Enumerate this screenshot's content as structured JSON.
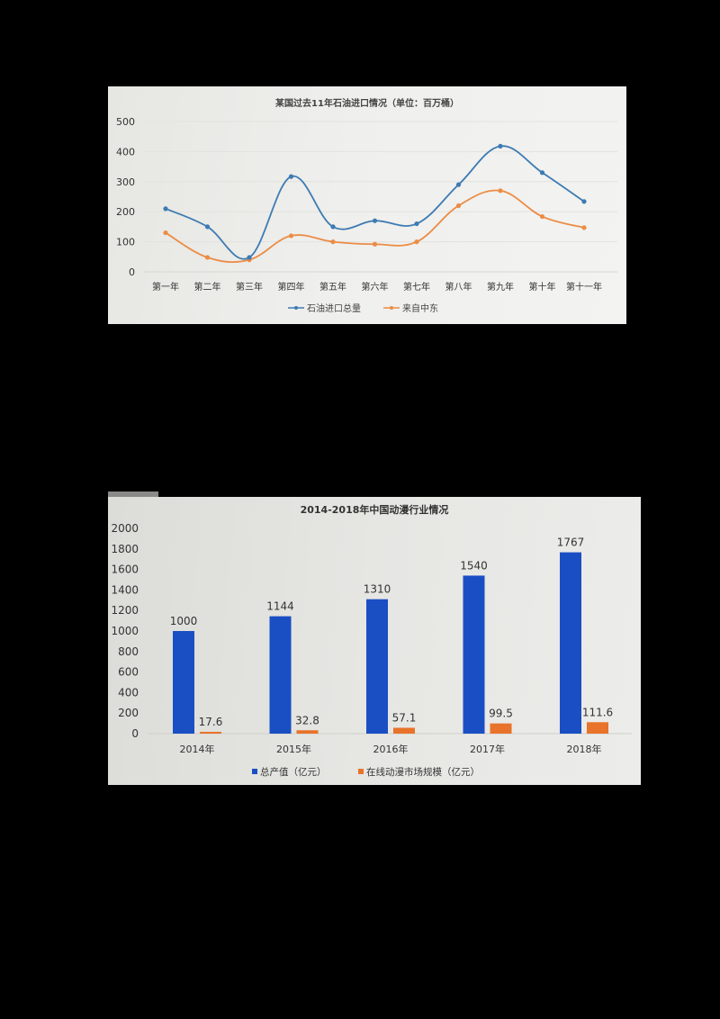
{
  "chart_data": [
    {
      "type": "line",
      "title": "某国过去11年石油进口情况（单位：百万桶）",
      "xlabel": "",
      "ylabel": "",
      "categories": [
        "第一年",
        "第二年",
        "第三年",
        "第四年",
        "第五年",
        "第六年",
        "第七年",
        "第八年",
        "第九年",
        "第十年",
        "第十一年"
      ],
      "series": [
        {
          "name": "石油进口总量",
          "color": "#3d7bb3",
          "values": [
            210,
            150,
            48,
            317,
            150,
            170,
            160,
            290,
            418,
            330,
            234
          ]
        },
        {
          "name": "来自中东",
          "color": "#ec8c45",
          "values": [
            130,
            48,
            40,
            120,
            100,
            92,
            100,
            220,
            270,
            184,
            147
          ]
        }
      ],
      "yticks": [
        0,
        100,
        200,
        300,
        400,
        500
      ],
      "ylim": [
        0,
        500
      ],
      "grid": true,
      "smooth": true,
      "legend_position": "bottom"
    },
    {
      "type": "bar",
      "title": "2014-2018年中国动漫行业情况",
      "xlabel": "",
      "ylabel": "",
      "categories": [
        "2014年",
        "2015年",
        "2016年",
        "2017年",
        "2018年"
      ],
      "series": [
        {
          "name": "总产值（亿元）",
          "color": "#1a4fc4",
          "values": [
            1000,
            1144,
            1310,
            1540,
            1767
          ]
        },
        {
          "name": "在线动漫市场规模（亿元）",
          "color": "#e8732a",
          "values": [
            17.6,
            32.8,
            57.1,
            99.5,
            111.6
          ]
        }
      ],
      "data_labels": [
        [
          "1000",
          "1144",
          "1310",
          "1540",
          "1767"
        ],
        [
          "17.6",
          "32.8",
          "57.1",
          "99.5",
          "111.6"
        ]
      ],
      "yticks": [
        0,
        200,
        400,
        600,
        800,
        1000,
        1200,
        1400,
        1600,
        1800,
        2000
      ],
      "ylim": [
        0,
        2000
      ],
      "grid": false,
      "legend_position": "bottom"
    }
  ],
  "chart1": {
    "title": "某国过去11年石油进口情况（单位：百万桶）",
    "legend": [
      "石油进口总量",
      "来自中东"
    ]
  },
  "chart2": {
    "title": "2014-2018年中国动漫行业情况",
    "legend": [
      "总产值（亿元）",
      "在线动漫市场规模（亿元）"
    ]
  }
}
